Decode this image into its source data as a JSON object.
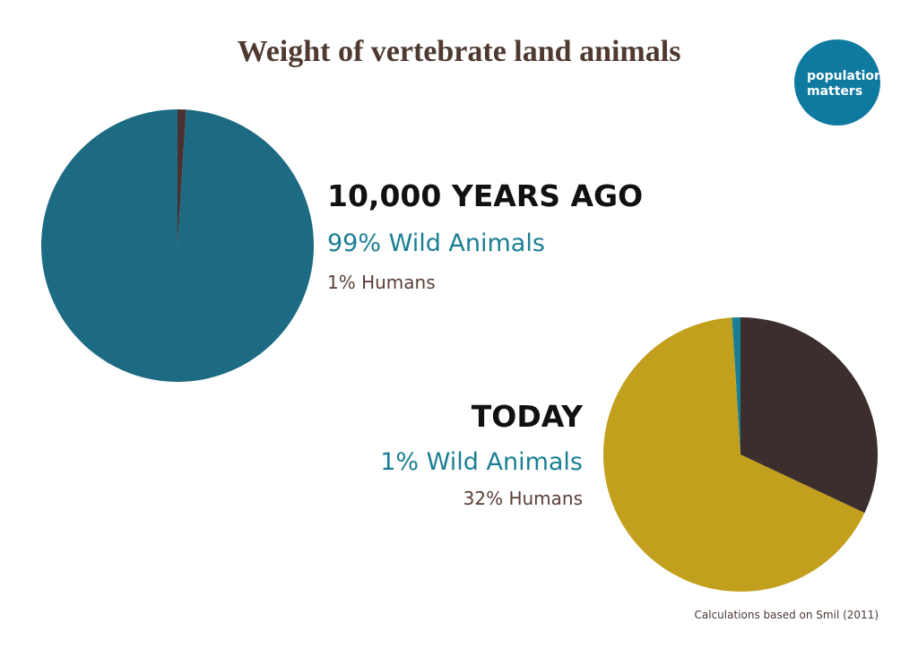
{
  "title": "Weight of vertebrate land animals",
  "logo": {
    "lines": [
      "population",
      "matters"
    ]
  },
  "chart_data": [
    {
      "type": "pie",
      "heading": "10,000 YEARS AGO",
      "values": [
        99,
        1
      ],
      "value_labels": [
        "99% Wild Animals",
        "1% Humans"
      ],
      "colors": [
        "#1d6b82",
        "#4a3030"
      ]
    },
    {
      "type": "pie",
      "heading": "TODAY",
      "values": [
        1,
        67,
        32
      ],
      "value_labels": [
        "1% Wild Animals",
        null,
        "32% Humans"
      ],
      "colors": [
        "#1a7f94",
        "#c29f1c",
        "#3b2e2c"
      ]
    }
  ],
  "source": "Calculations based on Smil (2011)"
}
